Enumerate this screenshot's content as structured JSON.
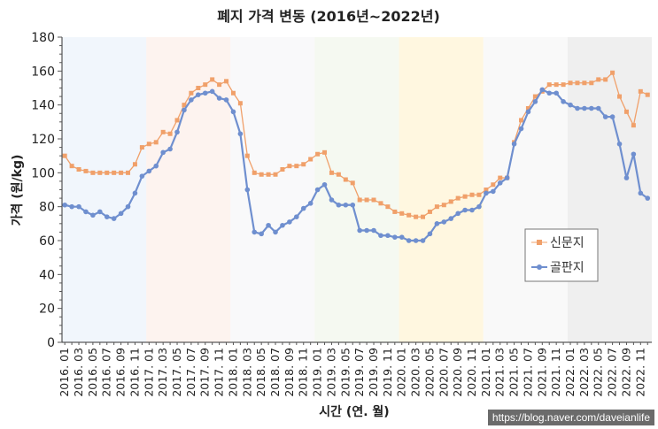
{
  "chart_data": {
    "type": "line",
    "title": "폐지 가격 변동 (2016년~2022년)",
    "xlabel": "시간 (연. 월)",
    "ylabel": "가격 (원/kg)",
    "ylim": [
      0,
      180
    ],
    "yticks": [
      0,
      20,
      40,
      60,
      80,
      100,
      120,
      140,
      160,
      180
    ],
    "legend_position": "right",
    "years": [
      "2016",
      "2017",
      "2018",
      "2019",
      "2020",
      "2021",
      "2022"
    ],
    "band_colors": [
      "#f1f6fc",
      "#fdf3ef",
      "#f9f9fa",
      "#f5f9f1",
      "#fff7e0",
      "#f9f9f9",
      "#efefef"
    ],
    "series": [
      {
        "name": "신문지",
        "color": "#f0a06a",
        "marker": "square",
        "values": [
          110,
          104,
          102,
          101,
          100,
          100,
          100,
          100,
          100,
          100,
          105,
          115,
          117,
          118,
          124,
          123,
          131,
          140,
          147,
          150,
          152,
          155,
          152,
          154,
          147,
          141,
          110,
          100,
          99,
          99,
          99,
          102,
          104,
          104,
          105,
          108,
          111,
          112,
          100,
          99,
          96,
          94,
          84,
          84,
          84,
          82,
          80,
          77,
          76,
          75,
          74,
          74,
          77,
          80,
          81,
          83,
          85,
          86,
          87,
          87,
          90,
          93,
          97,
          97,
          118,
          131,
          138,
          145,
          148,
          152,
          152,
          152,
          153,
          153,
          153,
          153,
          155,
          155,
          159,
          145,
          136,
          128,
          148,
          146
        ]
      },
      {
        "name": "골판지",
        "color": "#6f8fcf",
        "marker": "circle",
        "values": [
          81,
          80,
          80,
          77,
          75,
          77,
          74,
          73,
          76,
          80,
          88,
          98,
          101,
          104,
          112,
          114,
          124,
          137,
          143,
          146,
          147,
          148,
          144,
          143,
          136,
          123,
          90,
          65,
          64,
          69,
          65,
          69,
          71,
          74,
          79,
          82,
          90,
          93,
          84,
          81,
          81,
          81,
          66,
          66,
          66,
          63,
          63,
          62,
          62,
          60,
          60,
          60,
          64,
          70,
          71,
          73,
          76,
          78,
          78,
          80,
          88,
          89,
          94,
          97,
          117,
          126,
          136,
          142,
          149,
          147,
          147,
          142,
          140,
          138,
          138,
          138,
          138,
          133,
          133,
          117,
          97,
          111,
          88,
          85
        ]
      }
    ]
  },
  "watermark": "https://blog.naver.com/daveianlife"
}
